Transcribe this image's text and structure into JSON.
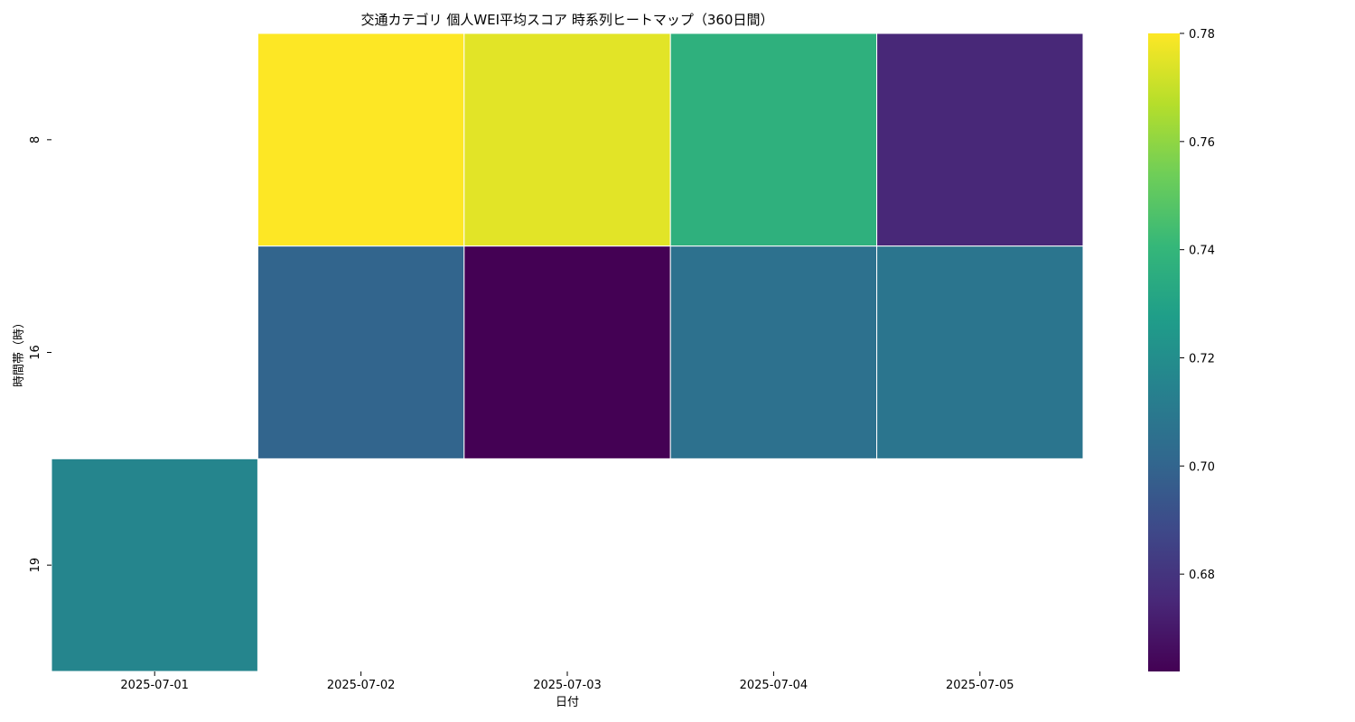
{
  "chart_data": {
    "type": "heatmap",
    "title": "交通カテゴリ 個人WEI平均スコア 時系列ヒートマップ（360日間）",
    "xlabel": "日付",
    "ylabel": "時間帯（時）",
    "x_categories": [
      "2025-07-01",
      "2025-07-02",
      "2025-07-03",
      "2025-07-04",
      "2025-07-05"
    ],
    "y_categories": [
      "8",
      "16",
      "19"
    ],
    "values": [
      [
        null,
        0.78,
        0.775,
        0.737,
        0.675
      ],
      [
        null,
        0.7,
        0.662,
        0.706,
        0.708
      ],
      [
        0.716,
        null,
        null,
        null,
        null
      ]
    ],
    "colormap": "viridis",
    "vmin": 0.662,
    "vmax": 0.78,
    "colorbar_ticks": [
      "0.68",
      "0.70",
      "0.72",
      "0.74",
      "0.76",
      "0.78"
    ],
    "colorbar_tick_values": [
      0.68,
      0.7,
      0.72,
      0.74,
      0.76,
      0.78
    ]
  }
}
